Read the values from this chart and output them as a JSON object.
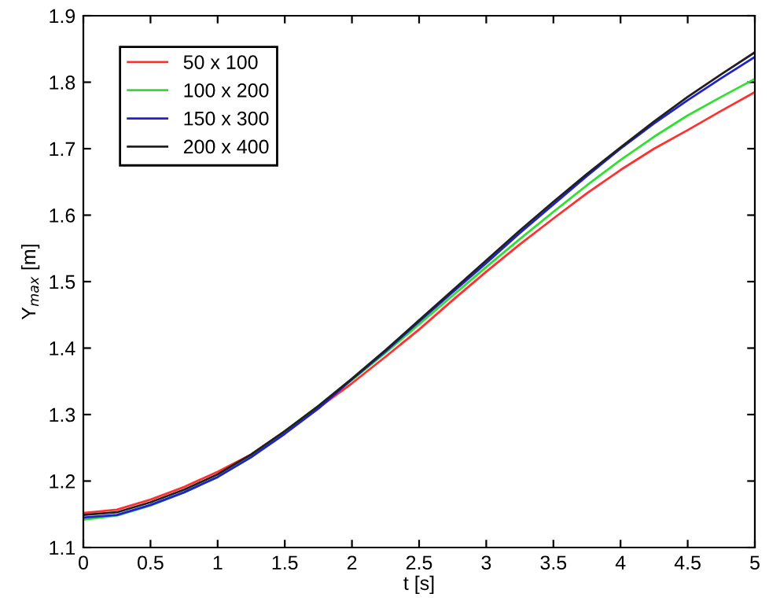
{
  "chart_data": {
    "type": "line",
    "xlabel": "t [s]",
    "ylabel": "Y$_{max}$ [m]",
    "x": [
      0,
      0.25,
      0.5,
      0.75,
      1,
      1.25,
      1.5,
      1.75,
      2,
      2.25,
      2.5,
      2.75,
      3,
      3.25,
      3.5,
      3.75,
      4,
      4.25,
      4.5,
      4.75,
      5
    ],
    "series": [
      {
        "name": "50 x 100",
        "color": "#ff3030",
        "values": [
          1.152,
          1.157,
          1.172,
          1.191,
          1.214,
          1.24,
          1.275,
          1.31,
          1.347,
          1.387,
          1.428,
          1.472,
          1.515,
          1.556,
          1.595,
          1.633,
          1.668,
          1.7,
          1.728,
          1.757,
          1.785
        ]
      },
      {
        "name": "100 x 200",
        "color": "#30e030",
        "values": [
          1.142,
          1.148,
          1.163,
          1.183,
          1.206,
          1.236,
          1.275,
          1.313,
          1.352,
          1.393,
          1.436,
          1.479,
          1.522,
          1.564,
          1.605,
          1.645,
          1.683,
          1.718,
          1.75,
          1.778,
          1.805
        ]
      },
      {
        "name": "150 x 300",
        "color": "#2020d0",
        "values": [
          1.145,
          1.149,
          1.164,
          1.183,
          1.206,
          1.236,
          1.271,
          1.309,
          1.353,
          1.395,
          1.44,
          1.484,
          1.528,
          1.573,
          1.616,
          1.659,
          1.7,
          1.738,
          1.773,
          1.806,
          1.838
        ]
      },
      {
        "name": "200 x 400",
        "color": "#202020",
        "values": [
          1.149,
          1.153,
          1.168,
          1.187,
          1.21,
          1.24,
          1.275,
          1.313,
          1.354,
          1.397,
          1.442,
          1.487,
          1.532,
          1.577,
          1.62,
          1.662,
          1.702,
          1.741,
          1.778,
          1.812,
          1.845
        ]
      }
    ],
    "xlim": [
      0,
      5
    ],
    "xticks": [
      0,
      0.5,
      1,
      1.5,
      2,
      2.5,
      3,
      3.5,
      4,
      4.5,
      5
    ],
    "ylim": [
      1.1,
      1.9
    ],
    "yticks": [
      1.1,
      1.2,
      1.3,
      1.4,
      1.5,
      1.6,
      1.7,
      1.8,
      1.9
    ],
    "legend": "top left",
    "grid": false
  }
}
